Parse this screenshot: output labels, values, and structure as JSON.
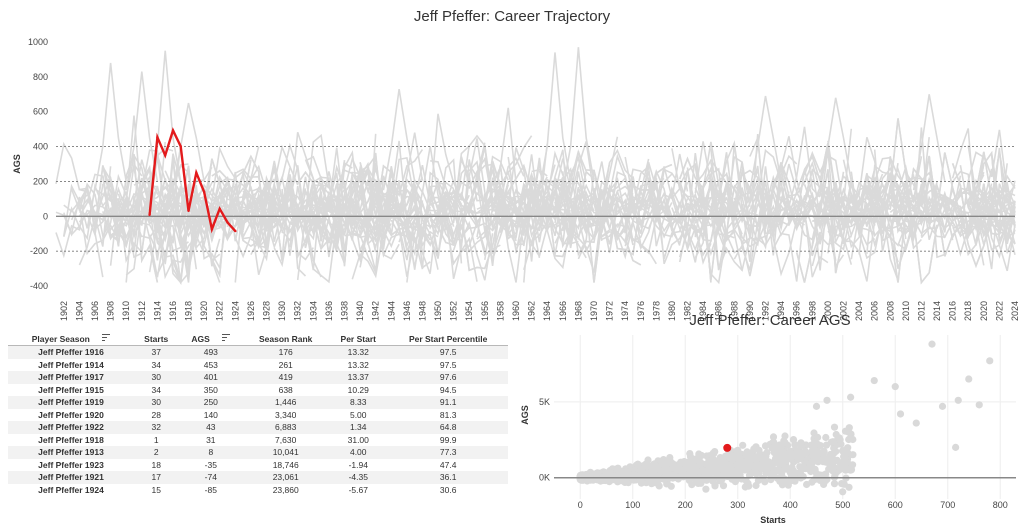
{
  "trajectory": {
    "title": "Jeff Pfeffer: Career Trajectory",
    "ylabel": "AGS",
    "yticks": [
      "1000",
      "800",
      "600",
      "400",
      "200",
      "0",
      "-200",
      "-400"
    ],
    "xticks": [
      "1902",
      "1904",
      "1906",
      "1908",
      "1910",
      "1912",
      "1914",
      "1916",
      "1918",
      "1920",
      "1922",
      "1924",
      "1926",
      "1928",
      "1930",
      "1932",
      "1934",
      "1936",
      "1938",
      "1940",
      "1942",
      "1944",
      "1946",
      "1948",
      "1950",
      "1952",
      "1954",
      "1956",
      "1958",
      "1960",
      "1962",
      "1964",
      "1966",
      "1968",
      "1970",
      "1972",
      "1974",
      "1976",
      "1978",
      "1980",
      "1982",
      "1984",
      "1986",
      "1988",
      "1990",
      "1992",
      "1994",
      "1996",
      "1998",
      "2000",
      "2002",
      "2004",
      "2006",
      "2008",
      "2010",
      "2012",
      "2014",
      "2016",
      "2018",
      "2020",
      "2022",
      "2024"
    ]
  },
  "table": {
    "headers": {
      "player_season": "Player Season",
      "starts": "Starts",
      "ags": "AGS",
      "season_rank": "Season Rank",
      "per_start": "Per Start",
      "percentile": "Per Start Percentile"
    },
    "rows": [
      {
        "season": "Jeff Pfeffer 1916",
        "starts": "37",
        "ags": "493",
        "rank": "176",
        "per_start": "13.32",
        "pct": "97.5"
      },
      {
        "season": "Jeff Pfeffer 1914",
        "starts": "34",
        "ags": "453",
        "rank": "261",
        "per_start": "13.32",
        "pct": "97.5"
      },
      {
        "season": "Jeff Pfeffer 1917",
        "starts": "30",
        "ags": "401",
        "rank": "419",
        "per_start": "13.37",
        "pct": "97.6"
      },
      {
        "season": "Jeff Pfeffer 1915",
        "starts": "34",
        "ags": "350",
        "rank": "638",
        "per_start": "10.29",
        "pct": "94.5"
      },
      {
        "season": "Jeff Pfeffer 1919",
        "starts": "30",
        "ags": "250",
        "rank": "1,446",
        "per_start": "8.33",
        "pct": "91.1"
      },
      {
        "season": "Jeff Pfeffer 1920",
        "starts": "28",
        "ags": "140",
        "rank": "3,340",
        "per_start": "5.00",
        "pct": "81.3"
      },
      {
        "season": "Jeff Pfeffer 1922",
        "starts": "32",
        "ags": "43",
        "rank": "6,883",
        "per_start": "1.34",
        "pct": "64.8"
      },
      {
        "season": "Jeff Pfeffer 1918",
        "starts": "1",
        "ags": "31",
        "rank": "7,630",
        "per_start": "31.00",
        "pct": "99.9"
      },
      {
        "season": "Jeff Pfeffer 1913",
        "starts": "2",
        "ags": "8",
        "rank": "10,041",
        "per_start": "4.00",
        "pct": "77.3"
      },
      {
        "season": "Jeff Pfeffer 1923",
        "starts": "18",
        "ags": "-35",
        "rank": "18,746",
        "per_start": "-1.94",
        "pct": "47.4"
      },
      {
        "season": "Jeff Pfeffer 1921",
        "starts": "17",
        "ags": "-74",
        "rank": "23,061",
        "per_start": "-4.35",
        "pct": "36.1"
      },
      {
        "season": "Jeff Pfeffer 1924",
        "starts": "15",
        "ags": "-85",
        "rank": "23,860",
        "per_start": "-5.67",
        "pct": "30.6"
      }
    ]
  },
  "career": {
    "title": "Jeff Pfeffer: Career AGS",
    "xlabel": "Starts",
    "ylabel": "AGS",
    "xticks": [
      "0",
      "100",
      "200",
      "300",
      "400",
      "500",
      "600",
      "700",
      "800"
    ],
    "yticks": [
      "5K",
      "0K"
    ]
  },
  "chart_data": [
    {
      "type": "line",
      "title": "Jeff Pfeffer: Career Trajectory",
      "xlabel": "",
      "ylabel": "AGS",
      "xlim": [
        1901,
        2024
      ],
      "ylim": [
        -400,
        1000
      ],
      "grid": true,
      "reference_lines": [
        400,
        200,
        0,
        -200
      ],
      "highlight_color": "#e31a1c",
      "background_color": "#d9d9d9",
      "series": [
        {
          "name": "Jeff Pfeffer",
          "x": [
            1913,
            1914,
            1915,
            1916,
            1917,
            1918,
            1919,
            1920,
            1921,
            1922,
            1923,
            1924
          ],
          "y": [
            8,
            453,
            350,
            493,
            401,
            31,
            250,
            140,
            -74,
            43,
            -35,
            -85
          ]
        }
      ]
    },
    {
      "type": "scatter",
      "title": "Jeff Pfeffer: Career AGS",
      "xlabel": "Starts",
      "ylabel": "AGS",
      "xlim": [
        -50,
        830
      ],
      "ylim": [
        -1400,
        9400
      ],
      "grid": true,
      "highlight_color": "#e31a1c",
      "background_color": "#d9d9d9",
      "series": [
        {
          "name": "Jeff Pfeffer",
          "x": [
            280
          ],
          "y": [
            1966
          ]
        }
      ],
      "other_points": {
        "x": [
          670,
          780,
          740,
          470,
          560,
          600,
          515,
          450,
          720,
          715,
          760,
          690,
          640,
          610,
          495
        ],
        "y": [
          8800,
          7700,
          6500,
          5100,
          6400,
          6000,
          5300,
          4700,
          5100,
          2000,
          4800,
          4700,
          3600,
          4200,
          2500
        ]
      }
    }
  ]
}
